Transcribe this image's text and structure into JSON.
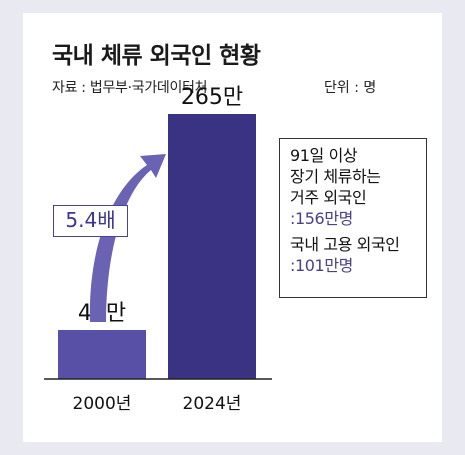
{
  "colors": {
    "background": "#e9e9f1",
    "card": "#ffffff",
    "bar_2000": "#5750a6",
    "bar_2024": "#3a3282",
    "arrow": "#6a63b3",
    "accent_text": "#4b3f86"
  },
  "icons": {
    "growth_arrow": "curved-up-arrow-icon"
  },
  "chart_data": {
    "type": "bar",
    "title": "국내 체류 외국인 현황",
    "source": "자료 : 법무부·국가데이터처",
    "unit": "단위 : 명",
    "categories": [
      "2000년",
      "2024년"
    ],
    "values": [
      49,
      265
    ],
    "value_labels": [
      "49만",
      "265만"
    ],
    "ylim": [
      0,
      300
    ],
    "grid": false,
    "annotation": {
      "multiplier": "5.4배",
      "note_lines": [
        {
          "text": "91일 이상",
          "accent": false
        },
        {
          "text": "장기 체류하는",
          "accent": false
        },
        {
          "text": "거주 외국인",
          "accent": false
        },
        {
          "text": ":156만명",
          "accent": true
        },
        {
          "text": "국내 고용 외국인",
          "accent": false
        },
        {
          "text": ":101만명",
          "accent": true
        }
      ]
    }
  }
}
